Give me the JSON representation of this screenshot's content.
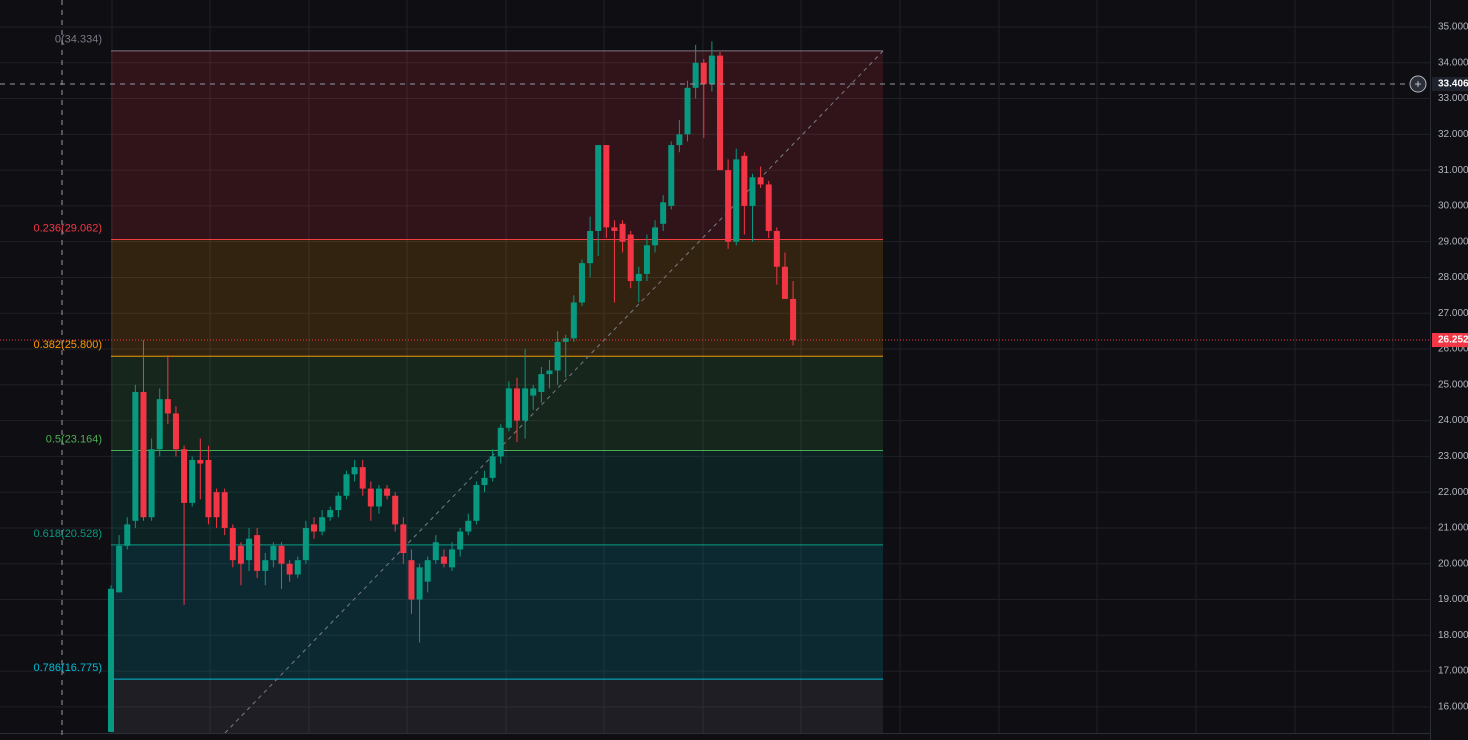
{
  "chart_data": {
    "type": "candlestick",
    "open": [
      15.3,
      19.2,
      20.5,
      21.2,
      24.8,
      21.3,
      23.2,
      24.6,
      24.2,
      23.2,
      21.7,
      22.9,
      22.9,
      22.0,
      22.0,
      21.0,
      20.5,
      20.1,
      20.8,
      19.8,
      20.1,
      20.5,
      20.0,
      19.7,
      20.1,
      21.1,
      20.9,
      21.3,
      21.5,
      21.9,
      22.5,
      22.7,
      22.1,
      21.6,
      22.1,
      21.9,
      21.1,
      20.1,
      19.0,
      19.5,
      20.1,
      20.2,
      19.9,
      20.4,
      20.9,
      21.2,
      22.2,
      22.4,
      23.0,
      23.8,
      24.9,
      24.0,
      24.7,
      24.8,
      25.3,
      25.4,
      26.2,
      26.3,
      27.3,
      28.4,
      29.3,
      31.7,
      29.4,
      29.5,
      29.2,
      27.9,
      28.1,
      28.9,
      29.5,
      30.0,
      31.7,
      32.0,
      33.3,
      34.0,
      33.4,
      34.2,
      31.0,
      29.0,
      31.4,
      30.0,
      30.8,
      30.6,
      29.3,
      28.3,
      27.4
    ],
    "high": [
      19.4,
      20.8,
      21.3,
      25.0,
      26.25,
      23.5,
      24.9,
      25.83,
      24.4,
      23.3,
      23.0,
      23.5,
      23.3,
      22.1,
      22.1,
      21.1,
      20.6,
      21.0,
      21.0,
      20.3,
      20.6,
      20.6,
      20.1,
      20.2,
      21.2,
      21.3,
      21.5,
      21.6,
      22.0,
      22.6,
      22.9,
      22.9,
      22.3,
      22.2,
      22.2,
      22.0,
      21.3,
      20.4,
      20.0,
      20.2,
      20.8,
      20.4,
      20.6,
      21.0,
      21.4,
      22.3,
      22.6,
      23.2,
      23.9,
      25.1,
      25.2,
      26.0,
      25.0,
      25.5,
      25.7,
      26.5,
      26.4,
      27.5,
      28.5,
      29.7,
      31.7,
      31.7,
      29.6,
      29.6,
      29.3,
      28.3,
      29.2,
      29.6,
      30.3,
      31.8,
      32.4,
      33.5,
      34.5,
      34.1,
      34.6,
      34.3,
      31.3,
      31.6,
      31.5,
      30.9,
      31.1,
      30.7,
      29.4,
      28.7,
      27.9
    ],
    "low": [
      15.3,
      19.2,
      20.4,
      21.0,
      21.2,
      21.2,
      23.0,
      23.9,
      23.0,
      18.85,
      21.6,
      21.8,
      21.1,
      21.0,
      20.8,
      19.9,
      19.4,
      19.8,
      19.6,
      19.4,
      19.9,
      19.3,
      19.5,
      19.6,
      20.0,
      20.7,
      20.8,
      21.2,
      21.3,
      21.8,
      22.3,
      21.9,
      21.2,
      21.4,
      21.8,
      20.9,
      20.0,
      18.6,
      17.8,
      19.2,
      20.0,
      19.9,
      19.8,
      20.2,
      20.8,
      21.1,
      22.0,
      22.3,
      22.8,
      23.7,
      23.4,
      23.5,
      24.3,
      24.5,
      24.9,
      25.0,
      25.2,
      26.2,
      27.2,
      28.0,
      28.6,
      29.1,
      27.3,
      28.7,
      27.7,
      27.3,
      27.9,
      28.7,
      29.3,
      29.9,
      31.5,
      31.8,
      33.0,
      31.9,
      33.2,
      31.0,
      28.8,
      28.9,
      29.2,
      29.0,
      30.5,
      29.1,
      27.8,
      27.4,
      26.1
    ],
    "close": [
      19.3,
      20.5,
      21.1,
      24.8,
      21.3,
      23.2,
      24.6,
      24.2,
      23.2,
      21.7,
      22.9,
      22.8,
      21.3,
      21.3,
      21.0,
      20.1,
      20.0,
      20.7,
      19.8,
      20.1,
      20.5,
      20.0,
      19.7,
      20.1,
      21.0,
      20.9,
      21.3,
      21.5,
      21.9,
      22.5,
      22.7,
      22.1,
      21.6,
      22.1,
      21.9,
      21.1,
      20.3,
      19.0,
      19.9,
      20.1,
      20.6,
      20.0,
      20.4,
      20.9,
      21.2,
      22.2,
      22.4,
      23.0,
      23.8,
      24.9,
      24.0,
      24.9,
      24.9,
      25.3,
      25.4,
      26.2,
      26.3,
      27.3,
      28.4,
      29.3,
      31.7,
      29.4,
      29.3,
      29.0,
      27.9,
      28.1,
      28.9,
      29.4,
      30.1,
      31.7,
      32.0,
      33.3,
      34.0,
      33.4,
      34.2,
      31.0,
      29.0,
      31.3,
      30.0,
      30.8,
      30.6,
      29.3,
      28.3,
      27.4,
      26.252
    ],
    "up_color": "#089981",
    "down_color": "#f23645",
    "ylim": [
      15.27,
      35.754
    ],
    "yticks": [
      {
        "value": 16,
        "label": "16.000"
      },
      {
        "value": 17,
        "label": "17.000"
      },
      {
        "value": 18,
        "label": "18.000"
      },
      {
        "value": 19,
        "label": "19.000"
      },
      {
        "value": 20,
        "label": "20.000"
      },
      {
        "value": 21,
        "label": "21.000"
      },
      {
        "value": 22,
        "label": "22.000"
      },
      {
        "value": 23,
        "label": "23.000"
      },
      {
        "value": 24,
        "label": "24.000"
      },
      {
        "value": 25,
        "label": "25.000"
      },
      {
        "value": 26,
        "label": "26.000"
      },
      {
        "value": 27,
        "label": "27.000"
      },
      {
        "value": 28,
        "label": "28.000"
      },
      {
        "value": 29,
        "label": "29.000"
      },
      {
        "value": 30,
        "label": "30.000"
      },
      {
        "value": 31,
        "label": "31.000"
      },
      {
        "value": 32,
        "label": "32.000"
      },
      {
        "value": 33,
        "label": "33.000"
      },
      {
        "value": 34,
        "label": "34.000"
      },
      {
        "value": 35,
        "label": "35.000"
      }
    ],
    "grid": true,
    "fib_levels": [
      {
        "price": 34.334,
        "label": "0(34.334)",
        "color": "#787b86"
      },
      {
        "price": 29.062,
        "label": "0.236(29.062)",
        "color": "#f23645"
      },
      {
        "price": 25.8,
        "label": "0.382(25.800)",
        "color": "#ff9800"
      },
      {
        "price": 23.164,
        "label": "0.5(23.164)",
        "color": "#4caf50"
      },
      {
        "price": 20.528,
        "label": "0.618(20.528)",
        "color": "#089981"
      },
      {
        "price": 16.775,
        "label": "0.786(16.775)",
        "color": "#00bcd4"
      }
    ],
    "crosshair_price": 33.406
  }
}
